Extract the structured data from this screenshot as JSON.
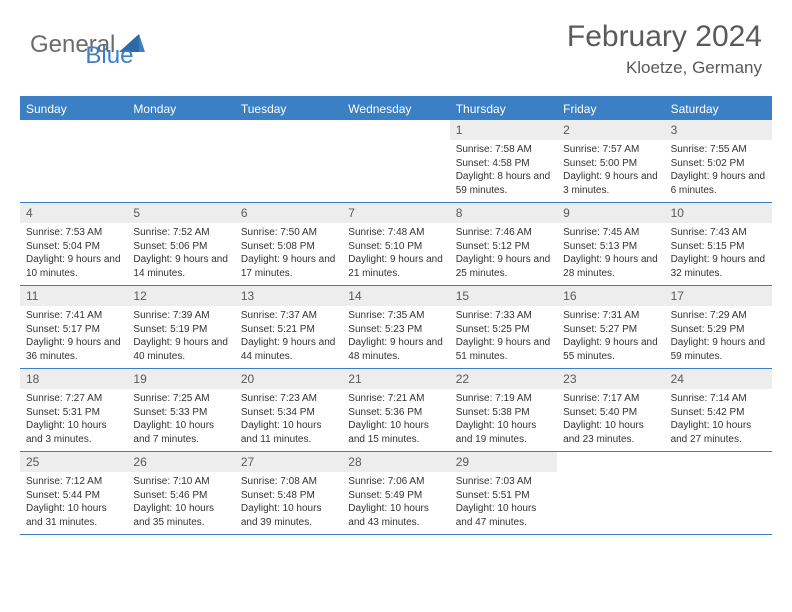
{
  "logo": {
    "general": "General",
    "blue": "Blue"
  },
  "title": "February 2024",
  "location": "Kloetze, Germany",
  "colors": {
    "accent": "#3b7fc4",
    "header_bg": "#3b7fc4",
    "header_text": "#ffffff",
    "daynum_bg": "#ededed",
    "text_gray": "#5a5a5a",
    "body_text": "#333333",
    "logo_gray": "#6b6b6b"
  },
  "weekdays": [
    "Sunday",
    "Monday",
    "Tuesday",
    "Wednesday",
    "Thursday",
    "Friday",
    "Saturday"
  ],
  "weeks": [
    [
      null,
      null,
      null,
      null,
      {
        "n": "1",
        "sr": "7:58 AM",
        "ss": "4:58 PM",
        "dl": "8 hours and 59 minutes."
      },
      {
        "n": "2",
        "sr": "7:57 AM",
        "ss": "5:00 PM",
        "dl": "9 hours and 3 minutes."
      },
      {
        "n": "3",
        "sr": "7:55 AM",
        "ss": "5:02 PM",
        "dl": "9 hours and 6 minutes."
      }
    ],
    [
      {
        "n": "4",
        "sr": "7:53 AM",
        "ss": "5:04 PM",
        "dl": "9 hours and 10 minutes."
      },
      {
        "n": "5",
        "sr": "7:52 AM",
        "ss": "5:06 PM",
        "dl": "9 hours and 14 minutes."
      },
      {
        "n": "6",
        "sr": "7:50 AM",
        "ss": "5:08 PM",
        "dl": "9 hours and 17 minutes."
      },
      {
        "n": "7",
        "sr": "7:48 AM",
        "ss": "5:10 PM",
        "dl": "9 hours and 21 minutes."
      },
      {
        "n": "8",
        "sr": "7:46 AM",
        "ss": "5:12 PM",
        "dl": "9 hours and 25 minutes."
      },
      {
        "n": "9",
        "sr": "7:45 AM",
        "ss": "5:13 PM",
        "dl": "9 hours and 28 minutes."
      },
      {
        "n": "10",
        "sr": "7:43 AM",
        "ss": "5:15 PM",
        "dl": "9 hours and 32 minutes."
      }
    ],
    [
      {
        "n": "11",
        "sr": "7:41 AM",
        "ss": "5:17 PM",
        "dl": "9 hours and 36 minutes."
      },
      {
        "n": "12",
        "sr": "7:39 AM",
        "ss": "5:19 PM",
        "dl": "9 hours and 40 minutes."
      },
      {
        "n": "13",
        "sr": "7:37 AM",
        "ss": "5:21 PM",
        "dl": "9 hours and 44 minutes."
      },
      {
        "n": "14",
        "sr": "7:35 AM",
        "ss": "5:23 PM",
        "dl": "9 hours and 48 minutes."
      },
      {
        "n": "15",
        "sr": "7:33 AM",
        "ss": "5:25 PM",
        "dl": "9 hours and 51 minutes."
      },
      {
        "n": "16",
        "sr": "7:31 AM",
        "ss": "5:27 PM",
        "dl": "9 hours and 55 minutes."
      },
      {
        "n": "17",
        "sr": "7:29 AM",
        "ss": "5:29 PM",
        "dl": "9 hours and 59 minutes."
      }
    ],
    [
      {
        "n": "18",
        "sr": "7:27 AM",
        "ss": "5:31 PM",
        "dl": "10 hours and 3 minutes."
      },
      {
        "n": "19",
        "sr": "7:25 AM",
        "ss": "5:33 PM",
        "dl": "10 hours and 7 minutes."
      },
      {
        "n": "20",
        "sr": "7:23 AM",
        "ss": "5:34 PM",
        "dl": "10 hours and 11 minutes."
      },
      {
        "n": "21",
        "sr": "7:21 AM",
        "ss": "5:36 PM",
        "dl": "10 hours and 15 minutes."
      },
      {
        "n": "22",
        "sr": "7:19 AM",
        "ss": "5:38 PM",
        "dl": "10 hours and 19 minutes."
      },
      {
        "n": "23",
        "sr": "7:17 AM",
        "ss": "5:40 PM",
        "dl": "10 hours and 23 minutes."
      },
      {
        "n": "24",
        "sr": "7:14 AM",
        "ss": "5:42 PM",
        "dl": "10 hours and 27 minutes."
      }
    ],
    [
      {
        "n": "25",
        "sr": "7:12 AM",
        "ss": "5:44 PM",
        "dl": "10 hours and 31 minutes."
      },
      {
        "n": "26",
        "sr": "7:10 AM",
        "ss": "5:46 PM",
        "dl": "10 hours and 35 minutes."
      },
      {
        "n": "27",
        "sr": "7:08 AM",
        "ss": "5:48 PM",
        "dl": "10 hours and 39 minutes."
      },
      {
        "n": "28",
        "sr": "7:06 AM",
        "ss": "5:49 PM",
        "dl": "10 hours and 43 minutes."
      },
      {
        "n": "29",
        "sr": "7:03 AM",
        "ss": "5:51 PM",
        "dl": "10 hours and 47 minutes."
      },
      null,
      null
    ]
  ],
  "labels": {
    "sunrise": "Sunrise:",
    "sunset": "Sunset:",
    "daylight": "Daylight:"
  }
}
